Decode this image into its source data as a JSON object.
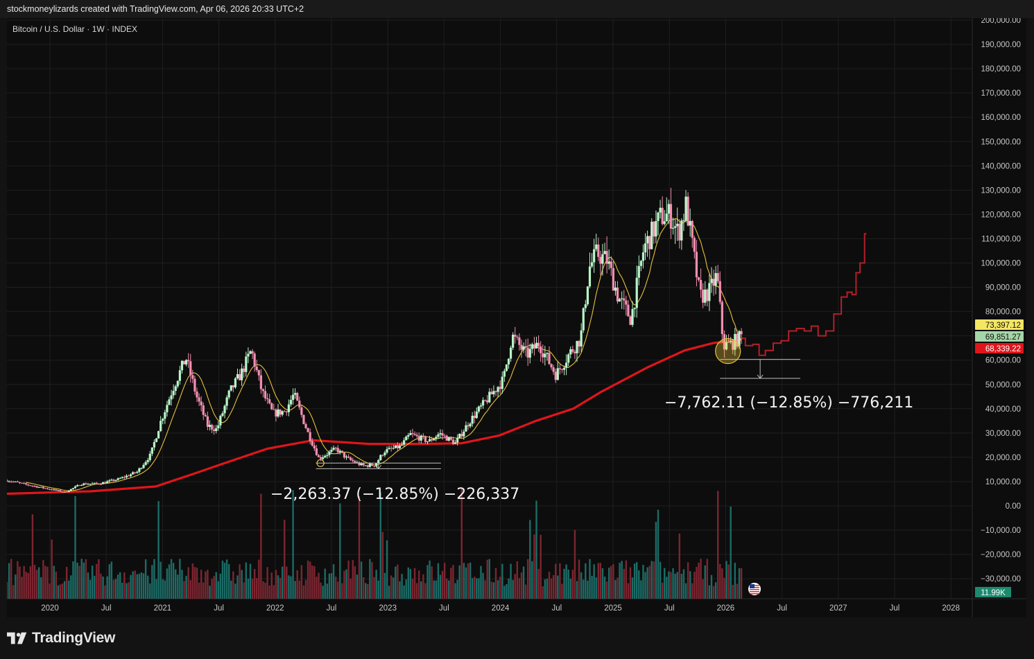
{
  "header": {
    "attribution": "stockmoneylizards created with TradingView.com, Apr 06, 2026 20:33 UTC+2"
  },
  "footer": {
    "brand": "TradingView"
  },
  "colors": {
    "background": "#0d0d0d",
    "grid": "#1f1f1f",
    "bull_candle": "#b9f6ca",
    "bear_candle": "#f48fb1",
    "ma200": "#e0151b",
    "ma_short": "#e8c23a",
    "projection": "#b3202a",
    "volume_up": "#1c6b66",
    "volume_down": "#7c2631",
    "highlight": "#e8c23a"
  },
  "chart_data": {
    "type": "candlestick",
    "title": "Bitcoin / U.S. Dollar · 1W · INDEX",
    "x_tick_labels": [
      "2020",
      "Jul",
      "2021",
      "Jul",
      "2022",
      "Jul",
      "2023",
      "Jul",
      "2024",
      "Jul",
      "2025",
      "Jul",
      "2026",
      "Jul",
      "2027",
      "Jul",
      "2028"
    ],
    "y_tick_labels": [
      "200,000.00",
      "190,000.00",
      "180,000.00",
      "170,000.00",
      "160,000.00",
      "150,000.00",
      "140,000.00",
      "130,000.00",
      "120,000.00",
      "110,000.00",
      "100,000.00",
      "90,000.00",
      "80,000.00",
      "70,000.00",
      "60,000.00",
      "50,000.00",
      "40,000.00",
      "30,000.00",
      "20,000.00",
      "10,000.00",
      "0.00",
      "−10,000.00",
      "−20,000.00",
      "−30,000.00"
    ],
    "xlim": [
      "2019-09-01",
      "2028-05-01"
    ],
    "ylim": [
      -38000,
      200000
    ],
    "price_path": [
      [
        "2019-09-01",
        10500
      ],
      [
        "2019-11-01",
        8800
      ],
      [
        "2020-01-01",
        7300
      ],
      [
        "2020-03-10",
        5600
      ],
      [
        "2020-05-01",
        9000
      ],
      [
        "2020-07-01",
        9200
      ],
      [
        "2020-09-01",
        11000
      ],
      [
        "2020-11-01",
        14000
      ],
      [
        "2020-12-15",
        21000
      ],
      [
        "2021-01-15",
        34000
      ],
      [
        "2021-02-25",
        48000
      ],
      [
        "2021-04-10",
        61000
      ],
      [
        "2021-05-15",
        45000
      ],
      [
        "2021-06-20",
        33000
      ],
      [
        "2021-07-20",
        31500
      ],
      [
        "2021-09-01",
        47000
      ],
      [
        "2021-10-10",
        55000
      ],
      [
        "2021-11-10",
        64000
      ],
      [
        "2021-12-15",
        47000
      ],
      [
        "2022-01-20",
        38000
      ],
      [
        "2022-03-01",
        39000
      ],
      [
        "2022-03-30",
        46000
      ],
      [
        "2022-05-15",
        30000
      ],
      [
        "2022-06-20",
        19500
      ],
      [
        "2022-08-15",
        23500
      ],
      [
        "2022-09-20",
        19500
      ],
      [
        "2022-11-10",
        16500
      ],
      [
        "2022-12-20",
        16800
      ],
      [
        "2023-01-20",
        22500
      ],
      [
        "2023-03-15",
        24500
      ],
      [
        "2023-04-15",
        29500
      ],
      [
        "2023-06-15",
        26500
      ],
      [
        "2023-07-20",
        29800
      ],
      [
        "2023-09-10",
        25800
      ],
      [
        "2023-10-25",
        34500
      ],
      [
        "2023-12-15",
        42500
      ],
      [
        "2024-02-15",
        52000
      ],
      [
        "2024-03-14",
        70000
      ],
      [
        "2024-05-01",
        62000
      ],
      [
        "2024-06-10",
        67000
      ],
      [
        "2024-08-05",
        54000
      ],
      [
        "2024-09-20",
        63000
      ],
      [
        "2024-10-25",
        69000
      ],
      [
        "2024-11-22",
        98000
      ],
      [
        "2024-12-17",
        104000
      ],
      [
        "2025-01-20",
        101000
      ],
      [
        "2025-02-25",
        86000
      ],
      [
        "2025-04-08",
        77000
      ],
      [
        "2025-05-20",
        106000
      ],
      [
        "2025-07-14",
        119000
      ],
      [
        "2025-08-14",
        120000
      ],
      [
        "2025-09-10",
        112000
      ],
      [
        "2025-10-06",
        124000
      ],
      [
        "2025-11-20",
        86000
      ],
      [
        "2025-12-20",
        88000
      ],
      [
        "2026-01-15",
        95000
      ],
      [
        "2026-02-05",
        66000
      ],
      [
        "2026-03-01",
        66500
      ],
      [
        "2026-04-06",
        69851
      ]
    ],
    "ma200_path": [
      [
        "2019-09-01",
        5000
      ],
      [
        "2020-06-01",
        6000
      ],
      [
        "2021-01-01",
        8000
      ],
      [
        "2021-05-01",
        13000
      ],
      [
        "2021-08-01",
        17000
      ],
      [
        "2022-01-01",
        23500
      ],
      [
        "2022-06-01",
        27000
      ],
      [
        "2022-12-01",
        25500
      ],
      [
        "2023-06-01",
        25500
      ],
      [
        "2023-10-01",
        25800
      ],
      [
        "2024-02-01",
        29000
      ],
      [
        "2024-06-01",
        35000
      ],
      [
        "2024-10-01",
        40000
      ],
      [
        "2025-01-01",
        47000
      ],
      [
        "2025-06-01",
        57000
      ],
      [
        "2025-10-01",
        64000
      ],
      [
        "2026-01-01",
        67000
      ],
      [
        "2026-04-06",
        68339
      ]
    ],
    "projection_path": [
      [
        "2026-04-06",
        69000
      ],
      [
        "2026-04-30",
        66000
      ],
      [
        "2026-05-25",
        66500
      ],
      [
        "2026-06-10",
        62000
      ],
      [
        "2026-07-05",
        64000
      ],
      [
        "2026-08-01",
        67000
      ],
      [
        "2026-08-25",
        68000
      ],
      [
        "2026-09-20",
        72000
      ],
      [
        "2026-10-15",
        73000
      ],
      [
        "2026-11-10",
        72000
      ],
      [
        "2026-11-30",
        74000
      ],
      [
        "2026-12-25",
        70000
      ],
      [
        "2027-01-20",
        72000
      ],
      [
        "2027-02-15",
        79000
      ],
      [
        "2027-03-10",
        86000
      ],
      [
        "2027-03-25",
        88000
      ],
      [
        "2027-04-12",
        87000
      ],
      [
        "2027-04-20",
        96000
      ],
      [
        "2027-05-08",
        100000
      ],
      [
        "2027-05-20",
        112000
      ]
    ],
    "price_labels": [
      {
        "text": "73,397.12",
        "value": 73397.12,
        "color": "#f5e663"
      },
      {
        "text": "69,851.27",
        "value": 69851.27,
        "color": "#a5d6a7"
      },
      {
        "text": "68,339.22",
        "value": 68339.22,
        "color": "#e0151b"
      }
    ],
    "volume_label": "11.99K",
    "annotations": [
      {
        "text": "−2,263.37 (−12.85%) −226,337",
        "range_top": 17600,
        "range_bottom": 15300,
        "x_start": "2022-06-10",
        "x_end": "2023-07-25",
        "marker_date": "2022-06-25",
        "marker_value": 17600
      },
      {
        "text": "−7,762.11 (−12.85%) −776,211",
        "range_top": 60300,
        "range_bottom": 52500,
        "x_start": "2026-01-25",
        "x_end": "2026-10-15",
        "marker_date": "2026-02-20",
        "marker_value": 60300
      }
    ]
  }
}
